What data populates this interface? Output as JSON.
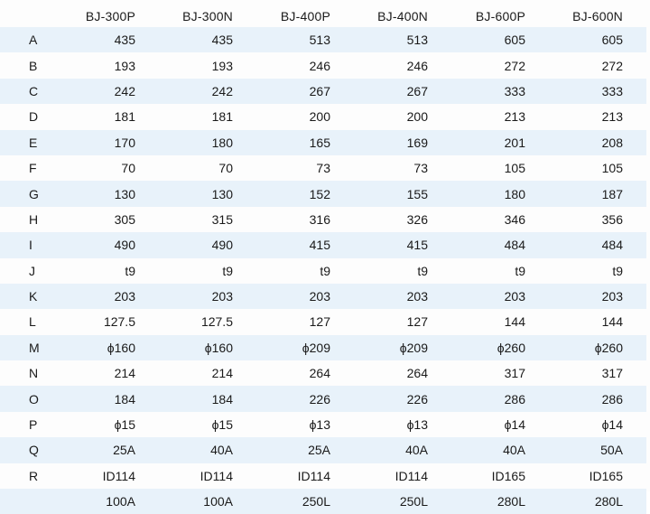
{
  "table": {
    "columns": [
      "BJ-300P",
      "BJ-300N",
      "BJ-400P",
      "BJ-400N",
      "BJ-600P",
      "BJ-600N"
    ],
    "rows": [
      {
        "label": "A",
        "values": [
          "435",
          "435",
          "513",
          "513",
          "605",
          "605"
        ]
      },
      {
        "label": "B",
        "values": [
          "193",
          "193",
          "246",
          "246",
          "272",
          "272"
        ]
      },
      {
        "label": "C",
        "values": [
          "242",
          "242",
          "267",
          "267",
          "333",
          "333"
        ]
      },
      {
        "label": "D",
        "values": [
          "181",
          "181",
          "200",
          "200",
          "213",
          "213"
        ]
      },
      {
        "label": "E",
        "values": [
          "170",
          "180",
          "165",
          "169",
          "201",
          "208"
        ]
      },
      {
        "label": "F",
        "values": [
          "70",
          "70",
          "73",
          "73",
          "105",
          "105"
        ]
      },
      {
        "label": "G",
        "values": [
          "130",
          "130",
          "152",
          "155",
          "180",
          "187"
        ]
      },
      {
        "label": "H",
        "values": [
          "305",
          "315",
          "316",
          "326",
          "346",
          "356"
        ]
      },
      {
        "label": "I",
        "values": [
          "490",
          "490",
          "415",
          "415",
          "484",
          "484"
        ]
      },
      {
        "label": "J",
        "values": [
          "t9",
          "t9",
          "t9",
          "t9",
          "t9",
          "t9"
        ]
      },
      {
        "label": "K",
        "values": [
          "203",
          "203",
          "203",
          "203",
          "203",
          "203"
        ]
      },
      {
        "label": "L",
        "values": [
          "127.5",
          "127.5",
          "127",
          "127",
          "144",
          "144"
        ]
      },
      {
        "label": "M",
        "values": [
          "ϕ160",
          "ϕ160",
          "ϕ209",
          "ϕ209",
          "ϕ260",
          "ϕ260"
        ]
      },
      {
        "label": "N",
        "values": [
          "214",
          "214",
          "264",
          "264",
          "317",
          "317"
        ]
      },
      {
        "label": "O",
        "values": [
          "184",
          "184",
          "226",
          "226",
          "286",
          "286"
        ]
      },
      {
        "label": "P",
        "values": [
          "ϕ15",
          "ϕ15",
          "ϕ13",
          "ϕ13",
          "ϕ14",
          "ϕ14"
        ]
      },
      {
        "label": "Q",
        "values": [
          "25A",
          "40A",
          "25A",
          "40A",
          "40A",
          "50A"
        ]
      },
      {
        "label": "R",
        "values": [
          "ID114",
          "ID114",
          "ID114",
          "ID114",
          "ID165",
          "ID165"
        ]
      },
      {
        "label": "",
        "values": [
          "100A",
          "100A",
          "250L",
          "250L",
          "280L",
          "280L"
        ]
      }
    ]
  }
}
